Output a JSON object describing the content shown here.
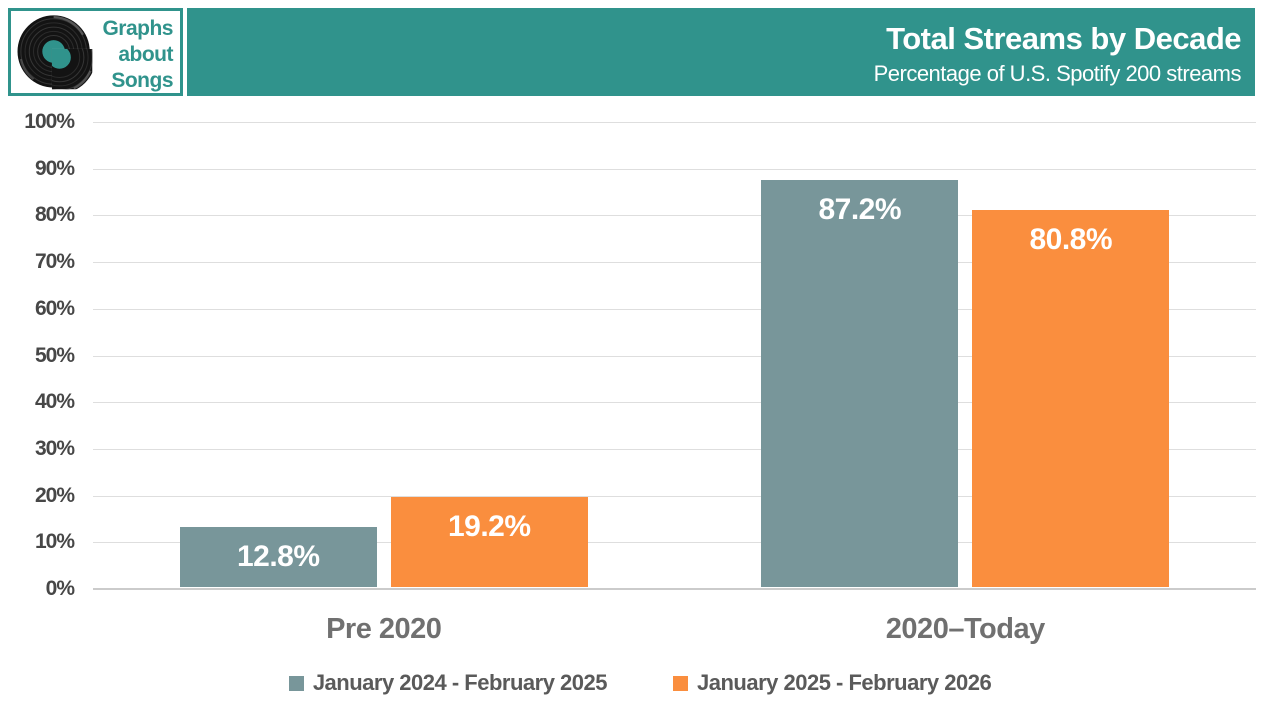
{
  "logo": {
    "line1": "Graphs",
    "line2": "about",
    "line3": "Songs"
  },
  "header": {
    "title": "Total Streams by Decade",
    "subtitle": "Percentage of U.S. Spotify 200 streams"
  },
  "chart_data": {
    "type": "bar",
    "title": "Total Streams by Decade",
    "subtitle": "Percentage of U.S. Spotify 200 streams",
    "categories": [
      "Pre 2020",
      "2020–Today"
    ],
    "series": [
      {
        "name": "January 2024 - February 2025",
        "color": "#78969A",
        "values": [
          12.8,
          87.2
        ],
        "labels": [
          "12.8%",
          "87.2%"
        ]
      },
      {
        "name": "January 2025 - February 2026",
        "color": "#FA8E3E",
        "values": [
          19.2,
          80.8
        ],
        "labels": [
          "19.2%",
          "80.8%"
        ]
      }
    ],
    "ylim": [
      0,
      100
    ],
    "ytick_step": 10,
    "ytick_labels": [
      "0%",
      "10%",
      "20%",
      "30%",
      "40%",
      "50%",
      "60%",
      "70%",
      "80%",
      "90%",
      "100%"
    ],
    "grid": true,
    "legend_position": "bottom"
  },
  "colors": {
    "teal": "#30938C",
    "bar_series1": "#78969A",
    "bar_series2": "#FA8E3E",
    "grid": "#DEDEDE",
    "axis_line": "#CBCBCB",
    "ytick_text": "#474747",
    "xlabel_text": "#707070",
    "legend_text": "#5A5A5A",
    "value_label_text": "#FFFFFF"
  }
}
